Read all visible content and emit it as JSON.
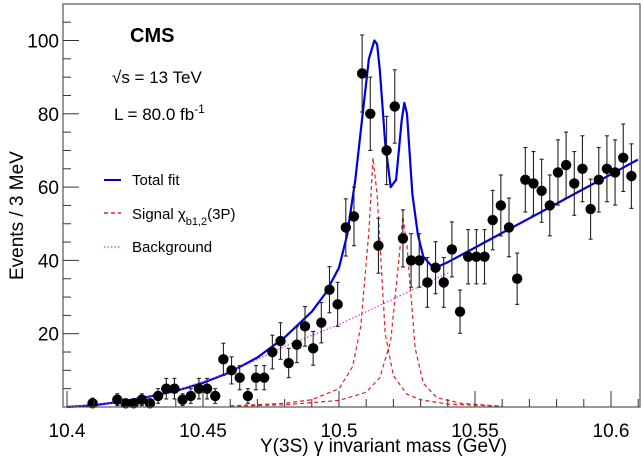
{
  "chart_data": {
    "type": "scatter",
    "title": "",
    "xlabel": "Υ(3S) γ   invariant mass (GeV)",
    "ylabel": "Events / 3 MeV",
    "xlim": [
      10.4,
      10.6099
    ],
    "ylim": [
      0,
      110
    ],
    "x_ticks": [
      10.4,
      10.45,
      10.5,
      10.55,
      10.6
    ],
    "x_tick_labels": [
      "10.4",
      "10.45",
      "10.5",
      "10.55",
      "10.6"
    ],
    "y_ticks": [
      20,
      40,
      60,
      80,
      100
    ],
    "y_tick_labels": [
      "20",
      "40",
      "60",
      "80",
      "100"
    ],
    "grid": false,
    "annotations": {
      "experiment": "CMS",
      "energy": "√s = 13 TeV",
      "lumi_prefix": "L = 80.0 fb",
      "lumi_sup": "-1"
    },
    "legend": {
      "placement": "left",
      "entries": [
        {
          "label": "Total fit",
          "style": "solid",
          "color": "#0000dd"
        },
        {
          "label": "Signal χ",
          "sub": "b1,2",
          "suffix": "(3P)",
          "style": "dashed",
          "color": "#dd2222"
        },
        {
          "label": "Background",
          "style": "dotted",
          "color": "#dd33dd"
        }
      ]
    },
    "series": [
      {
        "name": "Data",
        "kind": "points_with_errors",
        "color": "#000000",
        "x": [
          10.4094,
          10.4185,
          10.4215,
          10.4245,
          10.4275,
          10.4305,
          10.4335,
          10.4365,
          10.4395,
          10.4425,
          10.4455,
          10.4485,
          10.4515,
          10.4545,
          10.4575,
          10.4605,
          10.4635,
          10.4665,
          10.4695,
          10.4725,
          10.4755,
          10.4785,
          10.4815,
          10.4845,
          10.4875,
          10.4905,
          10.4935,
          10.4965,
          10.4995,
          10.5025,
          10.5055,
          10.5085,
          10.5115,
          10.5145,
          10.5175,
          10.5205,
          10.5235,
          10.5265,
          10.5295,
          10.5325,
          10.5355,
          10.5385,
          10.5415,
          10.5445,
          10.5475,
          10.5505,
          10.5535,
          10.5565,
          10.5595,
          10.5625,
          10.5655,
          10.5685,
          10.5715,
          10.5745,
          10.5775,
          10.5805,
          10.5835,
          10.5865,
          10.5895,
          10.5925,
          10.5955,
          10.5985,
          10.6015,
          10.6045,
          10.6075
        ],
        "y": [
          1,
          2,
          1,
          1,
          2,
          1,
          3,
          5,
          5,
          2,
          3,
          5,
          5,
          3,
          13,
          10,
          8,
          3,
          8,
          8,
          15,
          18,
          12,
          17,
          22,
          16,
          23,
          32,
          28,
          49,
          52,
          91,
          80,
          44,
          70,
          82,
          46,
          40,
          40,
          34,
          38,
          34,
          43,
          26,
          41,
          41,
          41,
          51,
          55,
          49,
          35,
          62,
          61,
          59,
          55,
          64,
          66,
          61,
          65,
          54,
          62,
          65,
          64,
          68,
          63
        ],
        "yerr": [
          1.4,
          1.6,
          1.2,
          1.2,
          1.6,
          1.2,
          2,
          2.8,
          2.8,
          1.6,
          2,
          2.8,
          2.8,
          2,
          4.4,
          3.7,
          3.3,
          2,
          3.3,
          3.3,
          4.6,
          5,
          4,
          4.9,
          5.4,
          4.6,
          5.5,
          6.3,
          6,
          7.8,
          8,
          10.5,
          10,
          7.5,
          9.3,
          10,
          7.8,
          7.3,
          7.3,
          6.8,
          7.1,
          6.8,
          7.5,
          5.9,
          7.4,
          7.4,
          7.4,
          8.1,
          8.3,
          8,
          7,
          8.8,
          8.7,
          8.6,
          8.3,
          8.9,
          9,
          8.7,
          9,
          8.2,
          8.8,
          9,
          8.9,
          9.2,
          8.8
        ]
      },
      {
        "name": "Total fit",
        "kind": "curve",
        "color": "#0000dd",
        "x": [
          10.4,
          10.41,
          10.42,
          10.43,
          10.44,
          10.45,
          10.46,
          10.47,
          10.48,
          10.49,
          10.495,
          10.5,
          10.503,
          10.506,
          10.509,
          10.511,
          10.513,
          10.514,
          10.515,
          10.517,
          10.519,
          10.521,
          10.523,
          10.524,
          10.525,
          10.527,
          10.529,
          10.531,
          10.534,
          10.537,
          10.54,
          10.55,
          10.56,
          10.57,
          10.58,
          10.59,
          10.6,
          10.6099
        ],
        "y": [
          0,
          0.5,
          1.5,
          2.8,
          4.4,
          6.6,
          9.5,
          13.5,
          19,
          26,
          31,
          38,
          47,
          62,
          82,
          95,
          100,
          99,
          92,
          72,
          60,
          62,
          78,
          83,
          80,
          58,
          47,
          41,
          38.5,
          38.5,
          39.5,
          43.5,
          47.5,
          51.5,
          55.5,
          59.5,
          63.5,
          67.5
        ]
      },
      {
        "name": "Signal chi_b1(3P)",
        "kind": "curve",
        "color": "#dd2222",
        "x": [
          10.46,
          10.48,
          10.49,
          10.5,
          10.505,
          10.508,
          10.511,
          10.5125,
          10.514,
          10.517,
          10.52,
          10.525,
          10.53,
          10.54,
          10.56
        ],
        "y": [
          0.3,
          1,
          2,
          5,
          11,
          22,
          48,
          68,
          58,
          20,
          8.5,
          3.5,
          2,
          0.8,
          0.2
        ]
      },
      {
        "name": "Signal chi_b2(3P)",
        "kind": "curve",
        "color": "#dd2222",
        "x": [
          10.46,
          10.48,
          10.5,
          10.51,
          10.515,
          10.519,
          10.522,
          10.5235,
          10.525,
          10.528,
          10.531,
          10.536,
          10.545,
          10.56
        ],
        "y": [
          0.2,
          0.6,
          1.8,
          4,
          8,
          18,
          40,
          52,
          44,
          16,
          6.5,
          2.5,
          1,
          0.2
        ]
      },
      {
        "name": "Background",
        "kind": "curve",
        "color": "#dd33dd",
        "x": [
          10.4,
          10.42,
          10.44,
          10.46,
          10.48,
          10.5,
          10.52,
          10.54,
          10.5382
        ],
        "y": [
          0,
          1.5,
          4.4,
          9.5,
          16.5,
          22.5,
          29.5,
          36.5,
          36
        ]
      }
    ]
  }
}
